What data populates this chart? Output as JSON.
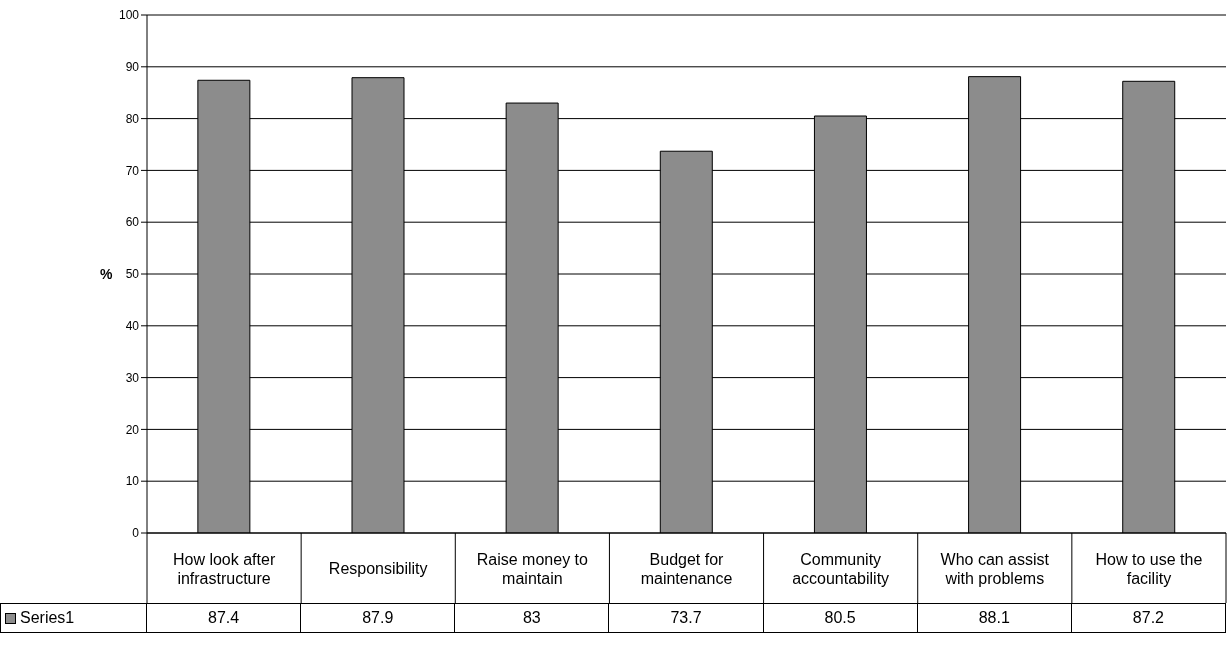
{
  "chart_data": {
    "type": "bar",
    "ylabel": "%",
    "categories": [
      "How look after infrastructure",
      "Responsibility",
      "Raise money to maintain",
      "Budget for maintenance",
      "Community accountability",
      "Who can assist with problems",
      "How to use the facility"
    ],
    "series": [
      {
        "name": "Series1",
        "color": "#8c8c8c",
        "values": [
          87.4,
          87.9,
          83,
          73.7,
          80.5,
          88.1,
          87.2
        ]
      }
    ],
    "ylim": [
      0,
      100
    ],
    "yticks": [
      0,
      10,
      20,
      30,
      40,
      50,
      60,
      70,
      80,
      90,
      100
    ],
    "grid": "y",
    "data_labels": true,
    "legend": "bottom"
  }
}
